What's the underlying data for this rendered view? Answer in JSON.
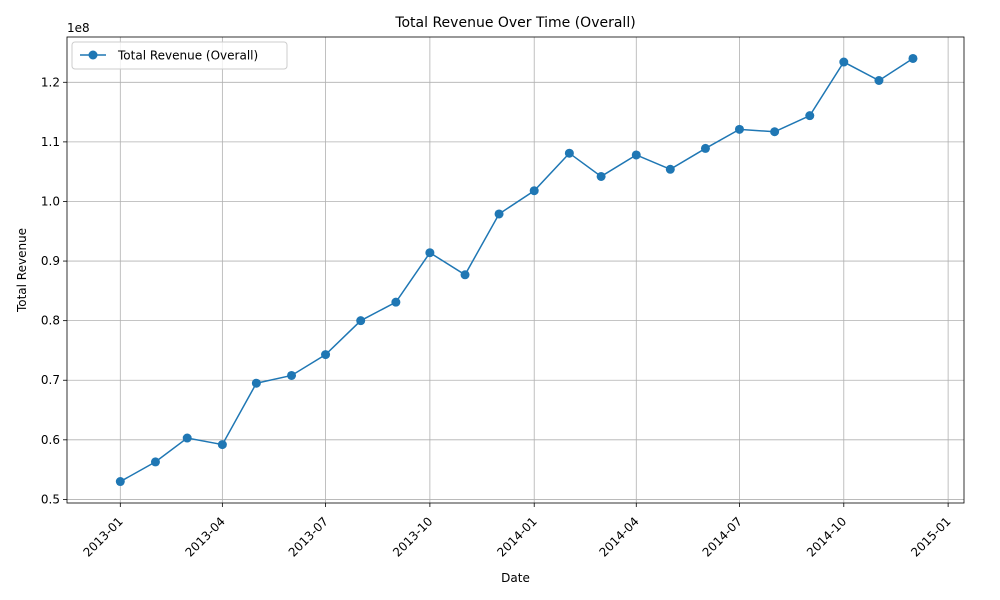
{
  "chart_data": {
    "type": "line",
    "title": "Total Revenue Over Time (Overall)",
    "xlabel": "Date",
    "ylabel": "Total Revenue",
    "y_offset_label": "1e8",
    "y_scale": 100000000,
    "color": "#1f77b4",
    "grid": true,
    "legend_position": "upper-left",
    "xlim": [
      "2012-11-15",
      "2015-01-15"
    ],
    "ylim": [
      0.494,
      1.276
    ],
    "x_ticks": [
      "2013-01",
      "2013-04",
      "2013-07",
      "2013-10",
      "2014-01",
      "2014-04",
      "2014-07",
      "2014-10",
      "2015-01"
    ],
    "y_ticks": [
      "0.5",
      "0.6",
      "0.7",
      "0.8",
      "0.9",
      "1.0",
      "1.1",
      "1.2"
    ],
    "y_tick_values": [
      0.5,
      0.6,
      0.7,
      0.8,
      0.9,
      1.0,
      1.1,
      1.2
    ],
    "series": [
      {
        "name": "Total Revenue (Overall)",
        "x": [
          "2013-01-01",
          "2013-02-01",
          "2013-03-01",
          "2013-04-01",
          "2013-05-01",
          "2013-06-01",
          "2013-07-01",
          "2013-08-01",
          "2013-09-01",
          "2013-10-01",
          "2013-11-01",
          "2013-12-01",
          "2014-01-01",
          "2014-02-01",
          "2014-03-01",
          "2014-04-01",
          "2014-05-01",
          "2014-06-01",
          "2014-07-01",
          "2014-08-01",
          "2014-09-01",
          "2014-10-01",
          "2014-11-01",
          "2014-12-01"
        ],
        "values": [
          0.53,
          0.563,
          0.603,
          0.592,
          0.695,
          0.708,
          0.743,
          0.8,
          0.831,
          0.914,
          0.877,
          0.979,
          1.018,
          1.081,
          1.042,
          1.078,
          1.054,
          1.089,
          1.121,
          1.117,
          1.144,
          1.234,
          1.203,
          1.24
        ]
      }
    ]
  }
}
